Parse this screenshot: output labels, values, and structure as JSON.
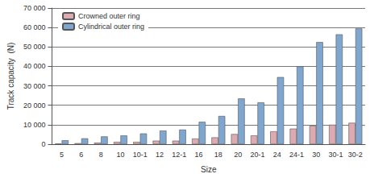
{
  "chart_data": {
    "type": "bar",
    "x_label": "Size",
    "y_label": "Track capacity  (N)",
    "categories": [
      "5",
      "6",
      "8",
      "10",
      "10-1",
      "12",
      "12-1",
      "16",
      "18",
      "20",
      "20-1",
      "24",
      "24-1",
      "30",
      "30-1",
      "30-2"
    ],
    "series": [
      {
        "name": "Crowned outer ring",
        "color": "#dcaab0",
        "values": [
          300,
          500,
          800,
          1200,
          1200,
          1800,
          1800,
          2900,
          3500,
          5200,
          4500,
          6600,
          8000,
          9500,
          10000,
          11000
        ]
      },
      {
        "name": "Cylindrical outer ring",
        "color": "#7fa6cf",
        "values": [
          2000,
          3000,
          4000,
          4500,
          5500,
          7000,
          7500,
          11500,
          14500,
          23500,
          21500,
          34500,
          40000,
          52500,
          56500,
          59500
        ]
      }
    ],
    "ylim": [
      0,
      70000
    ],
    "yticks": [
      0,
      {
        "value": 10000,
        "label": "10 000"
      },
      {
        "value": 20000,
        "label": "20 000"
      },
      {
        "value": 30000,
        "label": "30 000"
      },
      {
        "value": 40000,
        "label": "40 000"
      },
      {
        "value": 50000,
        "label": "50 000"
      },
      {
        "value": 60000,
        "label": "60 000"
      },
      {
        "value": 70000,
        "label": "70 000"
      }
    ],
    "grid": true,
    "legend": "upper left"
  }
}
